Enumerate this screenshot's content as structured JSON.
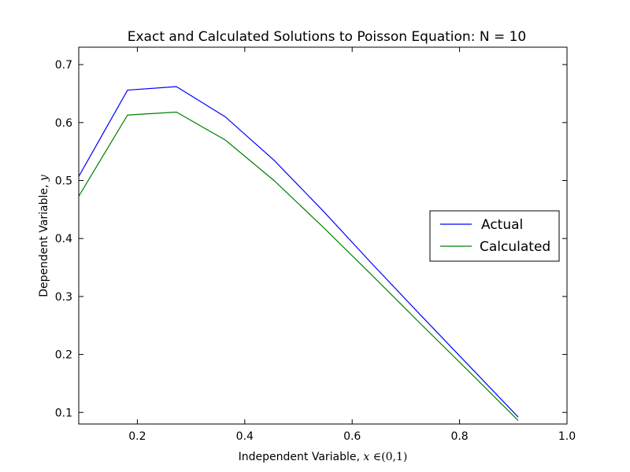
{
  "chart_data": {
    "type": "line",
    "title": "Exact and Calculated Solutions to Poisson Equation: N = 10",
    "xlabel": {
      "prefix": "Independent Variable, ",
      "var": "x",
      "set": " ∈(0,1)"
    },
    "ylabel": {
      "prefix": "Dependent Variable, ",
      "var": "y"
    },
    "xlim": [
      0.0909,
      1.0
    ],
    "ylim": [
      0.08,
      0.73
    ],
    "xticks": [
      0.2,
      0.4,
      0.6,
      0.8,
      1.0
    ],
    "xtick_labels": [
      "0.2",
      "0.4",
      "0.6",
      "0.8",
      "1.0"
    ],
    "yticks": [
      0.1,
      0.2,
      0.3,
      0.4,
      0.5,
      0.6,
      0.7
    ],
    "ytick_labels": [
      "0.1",
      "0.2",
      "0.3",
      "0.4",
      "0.5",
      "0.6",
      "0.7"
    ],
    "grid": false,
    "legend_position": "center-right",
    "x": [
      0.0909,
      0.1818,
      0.2727,
      0.3636,
      0.4545,
      0.5455,
      0.6364,
      0.7273,
      0.8182,
      0.9091
    ],
    "series": [
      {
        "name": "Actual",
        "color": "#0000ff",
        "values": [
          0.507,
          0.656,
          0.662,
          0.61,
          0.535,
          0.448,
          0.357,
          0.268,
          0.18,
          0.092
        ]
      },
      {
        "name": "Calculated",
        "color": "#008000",
        "values": [
          0.473,
          0.613,
          0.618,
          0.57,
          0.5,
          0.42,
          0.337,
          0.253,
          0.17,
          0.086
        ]
      }
    ]
  }
}
